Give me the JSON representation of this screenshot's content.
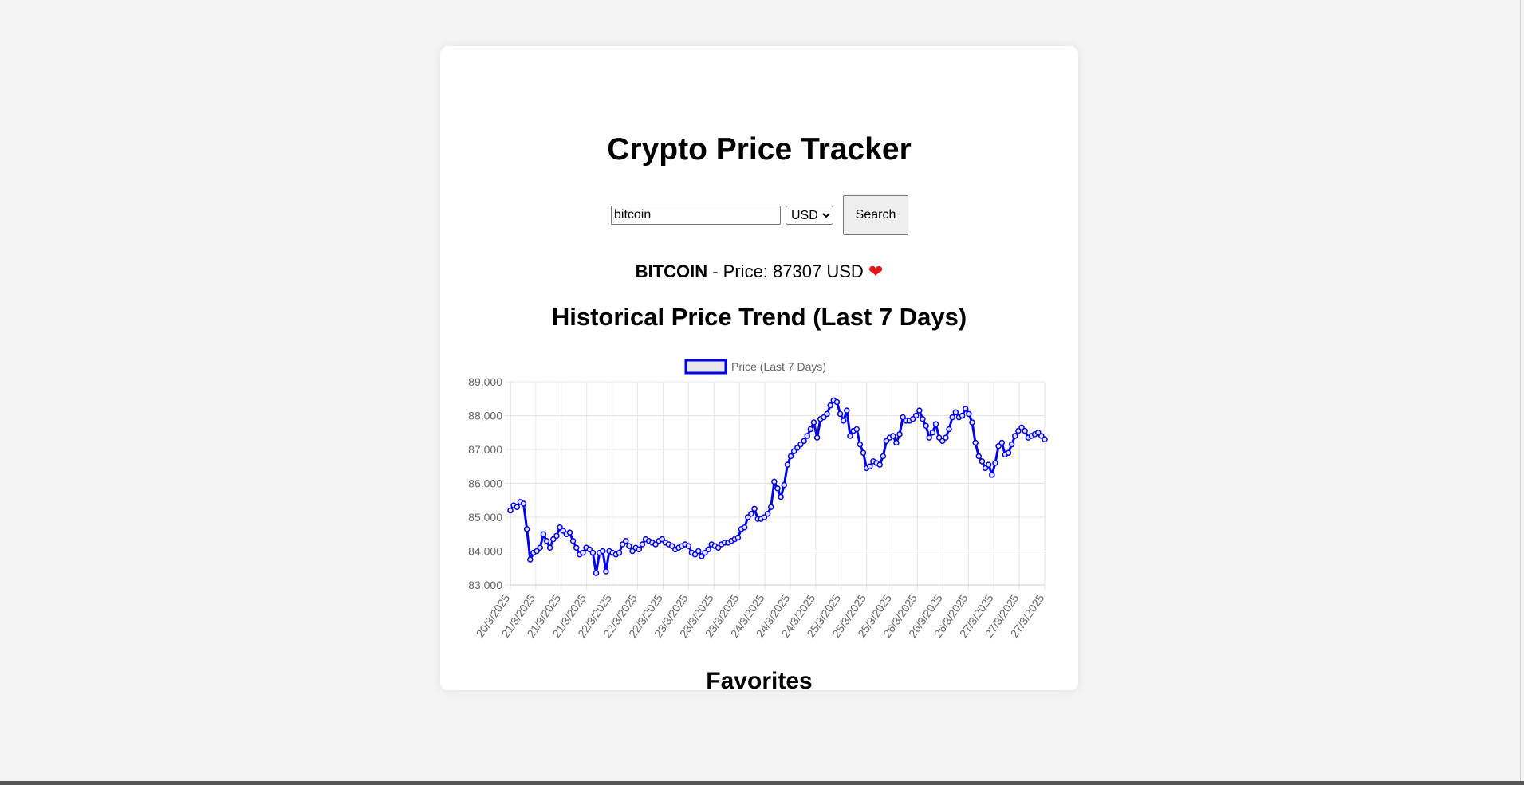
{
  "app": {
    "title": "Crypto Price Tracker"
  },
  "search": {
    "value": "bitcoin",
    "currency": "USD",
    "currency_options": [
      "USD"
    ],
    "button_label": "Search"
  },
  "price": {
    "coin": "BITCOIN",
    "text": " - Price: 87307 USD ",
    "heart": "❤"
  },
  "history": {
    "title": "Historical Price Trend (Last 7 Days)"
  },
  "favorites": {
    "title": "Favorites"
  },
  "colors": {
    "line": "#0000ee",
    "legend_fill": "#e6e6ea",
    "grid": "#e5e5e5",
    "tick_text": "#666666",
    "heart": "#e81313"
  },
  "chart_data": {
    "type": "line",
    "legend": [
      "Price (Last 7 Days)"
    ],
    "legend_position": "top",
    "grid": true,
    "ylim": [
      83000,
      89000
    ],
    "yticks": [
      "89,000",
      "88,000",
      "87,000",
      "86,000",
      "85,000",
      "84,000",
      "83,000"
    ],
    "xtick_labels": [
      "20/3/2025",
      "21/3/2025",
      "21/3/2025",
      "21/3/2025",
      "22/3/2025",
      "22/3/2025",
      "22/3/2025",
      "23/3/2025",
      "23/3/2025",
      "23/3/2025",
      "24/3/2025",
      "24/3/2025",
      "24/3/2025",
      "25/3/2025",
      "25/3/2025",
      "25/3/2025",
      "26/3/2025",
      "26/3/2025",
      "26/3/2025",
      "27/3/2025",
      "27/3/2025",
      "27/3/2025"
    ],
    "series": [
      {
        "name": "Price (Last 7 Days)",
        "values": [
          85200,
          85350,
          85300,
          85450,
          85400,
          84650,
          83750,
          83950,
          84000,
          84100,
          84500,
          84300,
          84100,
          84350,
          84450,
          84700,
          84600,
          84500,
          84550,
          84300,
          84100,
          83900,
          83950,
          84100,
          84050,
          83950,
          83350,
          83950,
          84000,
          83400,
          84000,
          83950,
          83900,
          83950,
          84200,
          84300,
          84150,
          84000,
          84100,
          84050,
          84200,
          84350,
          84300,
          84250,
          84200,
          84300,
          84350,
          84250,
          84200,
          84150,
          84050,
          84100,
          84150,
          84200,
          84150,
          83950,
          83900,
          84000,
          83850,
          83950,
          84050,
          84200,
          84150,
          84100,
          84200,
          84250,
          84250,
          84300,
          84350,
          84400,
          84650,
          84700,
          85000,
          85100,
          85250,
          84950,
          84950,
          85000,
          85100,
          85300,
          86050,
          85850,
          85600,
          85950,
          86550,
          86800,
          86950,
          87050,
          87150,
          87250,
          87400,
          87600,
          87800,
          87350,
          87900,
          87950,
          88050,
          88300,
          88450,
          88400,
          88050,
          87850,
          88150,
          87400,
          87550,
          87600,
          87150,
          86900,
          86450,
          86500,
          86650,
          86600,
          86550,
          86800,
          87250,
          87350,
          87400,
          87200,
          87450,
          87950,
          87850,
          87850,
          87900,
          88000,
          88150,
          87900,
          87700,
          87350,
          87500,
          87750,
          87350,
          87250,
          87350,
          87600,
          87950,
          88100,
          87950,
          88000,
          88200,
          88050,
          87800,
          87200,
          86800,
          86650,
          86450,
          86550,
          86250,
          86600,
          87100,
          87200,
          86850,
          86900,
          87150,
          87400,
          87550,
          87650,
          87550,
          87350,
          87400,
          87450,
          87500,
          87400,
          87300
        ]
      }
    ]
  }
}
